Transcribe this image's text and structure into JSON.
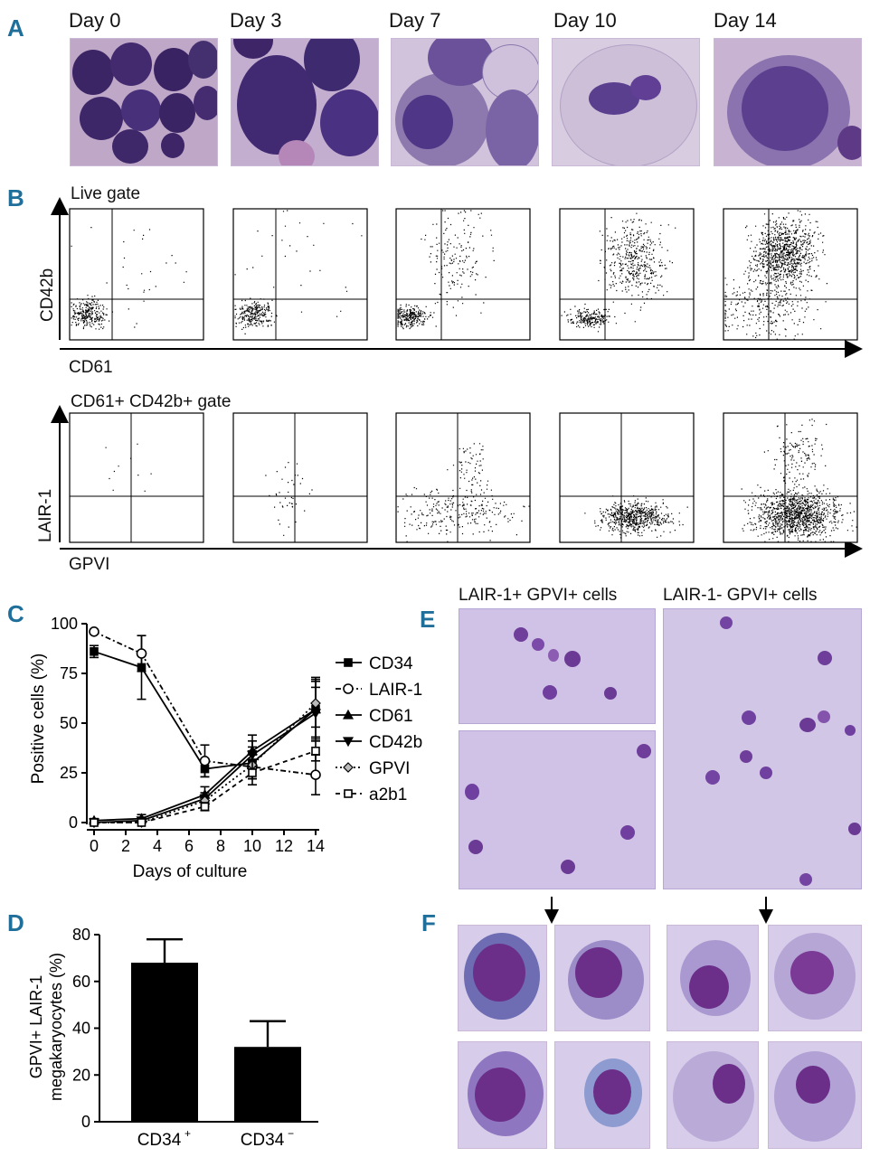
{
  "panels": {
    "A": "A",
    "B": "B",
    "C": "C",
    "D": "D",
    "E": "E",
    "F": "F"
  },
  "panelA": {
    "days": [
      "Day 0",
      "Day 3",
      "Day 7",
      "Day 10",
      "Day 14"
    ]
  },
  "panelB": {
    "top_gate": "Live gate",
    "top_ylabel": "CD42b",
    "top_xlabel": "CD61",
    "bottom_gate": "CD61+ CD42b+ gate",
    "bottom_ylabel": "LAIR-1",
    "bottom_xlabel": "GPVI"
  },
  "panelE": {
    "left_title": "LAIR-1+ GPVI+ cells",
    "right_title": "LAIR-1- GPVI+ cells"
  },
  "colors": {
    "panel_letter": "#1f6f9a",
    "stain_background": "#c3b0d9",
    "nucleus": "#5a2f8a",
    "bar_fill": "#000000"
  },
  "chart_data": [
    {
      "type": "line",
      "panel": "C",
      "xlabel": "Days of culture",
      "ylabel": "Positive cells (%)",
      "x": [
        0,
        3,
        7,
        10,
        14
      ],
      "xticks": [
        "0",
        "2",
        "4",
        "6",
        "8",
        "10",
        "12",
        "14"
      ],
      "yticks": [
        "0",
        "25",
        "50",
        "75",
        "100"
      ],
      "xlim": [
        0,
        14
      ],
      "ylim": [
        0,
        100
      ],
      "legend_position": "right",
      "series": [
        {
          "name": "CD34",
          "marker": "filled-square",
          "dash": "solid",
          "values": [
            86,
            78,
            27,
            30,
            57
          ],
          "err": [
            3,
            16,
            4,
            8,
            16
          ]
        },
        {
          "name": "LAIR-1",
          "marker": "open-circle",
          "dash": "dashdot",
          "values": [
            96,
            85,
            31,
            28,
            24
          ],
          "err": [
            1,
            9,
            8,
            6,
            10
          ]
        },
        {
          "name": "CD61",
          "marker": "filled-triangle-up",
          "dash": "solid",
          "values": [
            1,
            2,
            14,
            36,
            57
          ],
          "err": [
            1,
            2,
            4,
            8,
            14
          ]
        },
        {
          "name": "CD42b",
          "marker": "filled-triangle-down",
          "dash": "solid",
          "values": [
            0,
            1,
            12,
            34,
            55
          ],
          "err": [
            1,
            1,
            3,
            7,
            13
          ]
        },
        {
          "name": "GPVI",
          "marker": "open-diamond",
          "dash": "dotted",
          "values": [
            0,
            0,
            11,
            29,
            60
          ],
          "err": [
            1,
            1,
            3,
            7,
            12
          ]
        },
        {
          "name": "a2b1",
          "marker": "open-square",
          "dash": "dashed",
          "values": [
            0,
            0,
            8,
            25,
            36
          ],
          "err": [
            1,
            1,
            2,
            6,
            5
          ]
        }
      ]
    },
    {
      "type": "bar",
      "panel": "D",
      "ylabel": "GPVI+ LAIR-1 megakaryocytes (%)",
      "ylabel_lines": [
        "GPVI+ LAIR-1",
        "megakaryocytes (%)"
      ],
      "categories": [
        "CD34+",
        "CD34−"
      ],
      "category_labels": [
        {
          "base": "CD34",
          "sup": "+"
        },
        {
          "base": "CD34",
          "sup": "−"
        }
      ],
      "values": [
        68,
        32
      ],
      "err": [
        10,
        11
      ],
      "yticks": [
        "0",
        "20",
        "40",
        "60",
        "80"
      ],
      "ylim": [
        0,
        80
      ]
    }
  ]
}
